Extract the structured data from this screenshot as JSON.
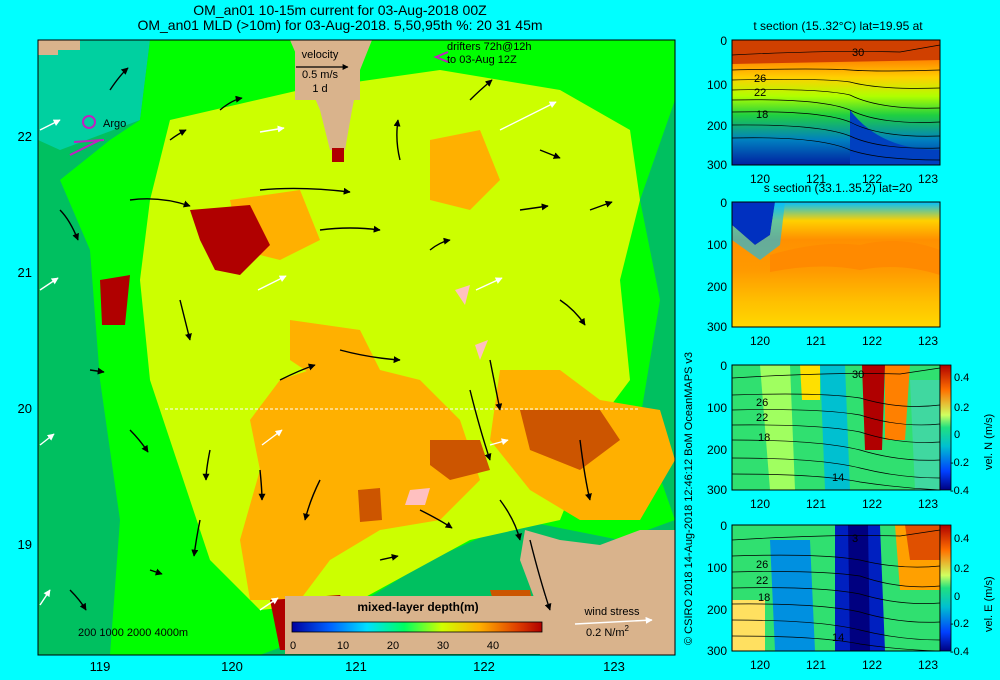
{
  "main_map": {
    "title_line1": "OM_an01 10-15m current for 03-Aug-2018 00Z",
    "title_line2": "OM_an01 MLD (>10m) for 03-Aug-2018. 5,50,95th %: 20  31  45m",
    "x_ticks": [
      "119",
      "120",
      "121",
      "122",
      "123"
    ],
    "y_ticks": [
      "22",
      "21",
      "20",
      "19"
    ],
    "velocity_key": {
      "label": "velocity",
      "speed": "0.5 m/s",
      "duration": "1 d"
    },
    "drifters_label_1": "drifters 72h@12h",
    "drifters_label_2": "to 03-Aug 12Z",
    "argo_label": "Argo",
    "bathymetry_legend": "200  1000  2000  4000m",
    "mld_colorbar": {
      "title": "mixed-layer depth(m)",
      "ticks": [
        "0",
        "10",
        "20",
        "30",
        "40"
      ]
    },
    "wind_stress": {
      "label": "wind stress",
      "value": "0.2 N/m",
      "exponent": "2"
    },
    "colors": {
      "land": "#d9b38c",
      "deep": "#00c060",
      "shelf": "#00ff00",
      "mid": "#ccff00",
      "orange": "#ffb000",
      "red": "#cc5500",
      "darkred": "#b00000"
    }
  },
  "side_panels": [
    {
      "name": "t-section",
      "title": "t section (15..32°C) lat=19.95 at",
      "x_ticks": [
        "120",
        "121",
        "122",
        "123"
      ],
      "y_ticks": [
        "0",
        "100",
        "200",
        "300"
      ],
      "contours": [
        "30",
        "26",
        "22",
        "18"
      ]
    },
    {
      "name": "s-section",
      "title": "s section (33.1..35.2) lat=20",
      "x_ticks": [
        "120",
        "121",
        "122",
        "123"
      ],
      "y_ticks": [
        "0",
        "100",
        "200",
        "300"
      ]
    },
    {
      "name": "vel-n-section",
      "colorbar_label": "vel. N (m/s)",
      "colorbar_ticks": [
        "0.4",
        "0.2",
        "0",
        "-0.2",
        "-0.4"
      ],
      "x_ticks": [
        "120",
        "121",
        "122",
        "123"
      ],
      "y_ticks": [
        "0",
        "100",
        "200",
        "300"
      ],
      "contours": [
        "30",
        "26",
        "22",
        "18",
        "14"
      ]
    },
    {
      "name": "vel-e-section",
      "colorbar_label": "vel. E (m/s)",
      "colorbar_ticks": [
        "0.4",
        "0.2",
        "0",
        "-0.2",
        "-0.4"
      ],
      "x_ticks": [
        "120",
        "121",
        "122",
        "123"
      ],
      "y_ticks": [
        "0",
        "100",
        "200",
        "300"
      ],
      "contours": [
        "3",
        "26",
        "22",
        "18",
        "14"
      ]
    }
  ],
  "credit": "© CSIRO 2018   14-Aug-2018 12:46:12 BoM OceanMAPS v3"
}
